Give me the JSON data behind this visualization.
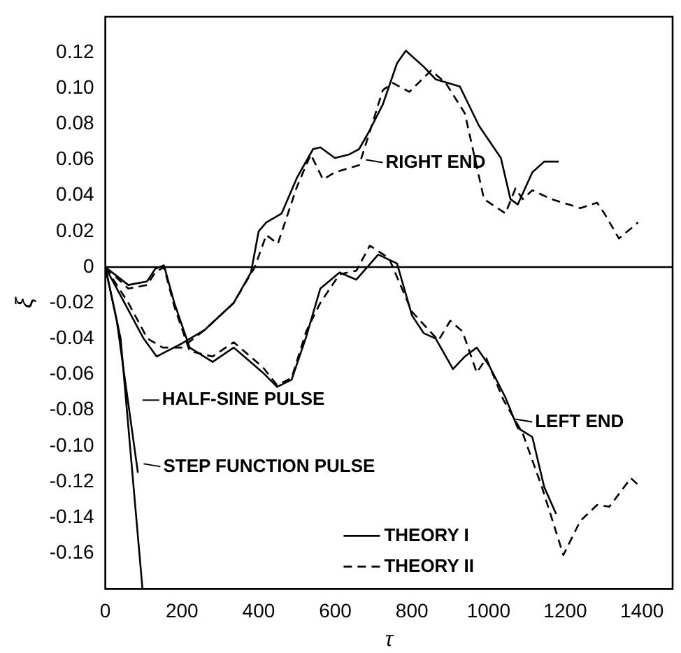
{
  "chart_data": {
    "type": "line",
    "xlabel": "τ",
    "ylabel": "ξ",
    "xlim": [
      0,
      1480
    ],
    "xticks": [
      0,
      200,
      400,
      600,
      800,
      1000,
      1200,
      1400
    ],
    "ylim": [
      -0.18,
      0.14
    ],
    "yticks": [
      {
        "value": -0.16,
        "label": "-0.16"
      },
      {
        "value": -0.14,
        "label": "-0.14"
      },
      {
        "value": -0.12,
        "label": "-0.12"
      },
      {
        "value": -0.1,
        "label": "-0.10"
      },
      {
        "value": -0.08,
        "label": "-0.08"
      },
      {
        "value": -0.06,
        "label": "-0.06"
      },
      {
        "value": -0.04,
        "label": "-0.04"
      },
      {
        "value": -0.02,
        "label": "-0.02"
      },
      {
        "value": 0,
        "label": "0"
      },
      {
        "value": 0.02,
        "label": "0.02"
      },
      {
        "value": 0.04,
        "label": "0.04"
      },
      {
        "value": 0.06,
        "label": "0.06"
      },
      {
        "value": 0.08,
        "label": "0.08"
      },
      {
        "value": 0.1,
        "label": "0.10"
      },
      {
        "value": 0.12,
        "label": "0.12"
      }
    ],
    "grid": false,
    "legend": "bottom",
    "marker": "none",
    "ref_lines": [
      {
        "axis": "y",
        "value": 0,
        "color": "#000000"
      }
    ],
    "annotations": [
      {
        "text": "RIGHT END",
        "x": 680,
        "y": 0.06
      },
      {
        "text": "LEFT END",
        "x": 1070,
        "y": -0.085
      },
      "HALF-SINE PULSE",
      {
        "text": "STEP FUNCTION PULSE",
        "x": 100,
        "y": -0.11
      }
    ],
    "series": [
      {
        "name": "THEORY I",
        "color": "#000000",
        "line_style": "solid",
        "x": [
          0,
          50,
          100,
          134,
          197,
          260,
          335,
          380,
          400,
          420,
          460,
          500,
          542,
          561,
          599,
          636,
          662,
          686,
          724,
          761,
          784,
          831,
          862,
          925,
          975,
          1032,
          1057,
          1076,
          1114,
          1145,
          1183
        ],
        "values": [
          0,
          -0.02,
          -0.04,
          -0.05,
          -0.043,
          -0.035,
          -0.02,
          -0.003,
          0.02,
          0.025,
          0.03,
          0.05,
          0.066,
          0.067,
          0.061,
          0.063,
          0.066,
          0.075,
          0.091,
          0.114,
          0.121,
          0.112,
          0.105,
          0.101,
          0.079,
          0.061,
          0.038,
          0.035,
          0.053,
          0.059,
          0.059
        ]
      },
      {
        "name": "THEORY II",
        "color": "#000000",
        "line_style": "dashed",
        "x": [
          0,
          60,
          110,
          150,
          200,
          260,
          335,
          390,
          420,
          450,
          500,
          536,
          568,
          599,
          662,
          686,
          724,
          750,
          793,
          850,
          888,
          938,
          988,
          1044,
          1070,
          1089,
          1114,
          1164,
          1239,
          1283,
          1302,
          1340,
          1390
        ],
        "values": [
          0,
          -0.02,
          -0.04,
          -0.045,
          -0.045,
          -0.035,
          -0.02,
          0,
          0.018,
          0.013,
          0.045,
          0.063,
          0.049,
          0.053,
          0.057,
          0.073,
          0.099,
          0.103,
          0.098,
          0.11,
          0.103,
          0.086,
          0.038,
          0.03,
          0.044,
          0.038,
          0.043,
          0.038,
          0.033,
          0.036,
          0.03,
          0.016,
          0.025
        ]
      },
      {
        "color": "#000000",
        "line_style": "solid",
        "x": [
          0,
          60,
          109,
          130,
          153,
          180,
          220,
          280,
          335,
          411,
          448,
          486,
          524,
          561,
          611,
          655,
          712,
          761,
          800,
          831,
          862,
          907,
          938,
          969,
          1001,
          1044,
          1076,
          1114,
          1145,
          1176
        ],
        "values": [
          0,
          -0.01,
          -0.008,
          -0.001,
          0.001,
          -0.02,
          -0.045,
          -0.053,
          -0.045,
          -0.059,
          -0.067,
          -0.063,
          -0.039,
          -0.012,
          -0.003,
          -0.007,
          0.007,
          0.002,
          -0.027,
          -0.037,
          -0.04,
          -0.057,
          -0.05,
          -0.045,
          -0.055,
          -0.073,
          -0.09,
          -0.095,
          -0.123,
          -0.138
        ]
      },
      {
        "color": "#000000",
        "line_style": "dashed",
        "x": [
          0,
          60,
          109,
          130,
          153,
          180,
          220,
          280,
          335,
          411,
          448,
          486,
          524,
          561,
          611,
          655,
          690,
          740,
          800,
          869,
          900,
          932,
          969,
          994,
          1038,
          1089,
          1139,
          1195,
          1239,
          1283,
          1315,
          1371,
          1396
        ],
        "values": [
          0,
          -0.012,
          -0.01,
          -0.003,
          0,
          -0.022,
          -0.047,
          -0.05,
          -0.042,
          -0.056,
          -0.066,
          -0.062,
          -0.036,
          -0.02,
          -0.004,
          -0.002,
          0.012,
          0.005,
          -0.025,
          -0.041,
          -0.03,
          -0.036,
          -0.059,
          -0.051,
          -0.074,
          -0.093,
          -0.123,
          -0.161,
          -0.142,
          -0.133,
          -0.134,
          -0.118,
          -0.123
        ]
      },
      {
        "color": "#000000",
        "line_style": "solid",
        "x": [
          0,
          40,
          97
        ],
        "values": [
          0,
          -0.04,
          -0.18
        ]
      },
      {
        "color": "#000000",
        "line_style": "solid",
        "x": [
          0,
          30,
          85
        ],
        "values": [
          0,
          -0.03,
          -0.115
        ]
      }
    ]
  }
}
